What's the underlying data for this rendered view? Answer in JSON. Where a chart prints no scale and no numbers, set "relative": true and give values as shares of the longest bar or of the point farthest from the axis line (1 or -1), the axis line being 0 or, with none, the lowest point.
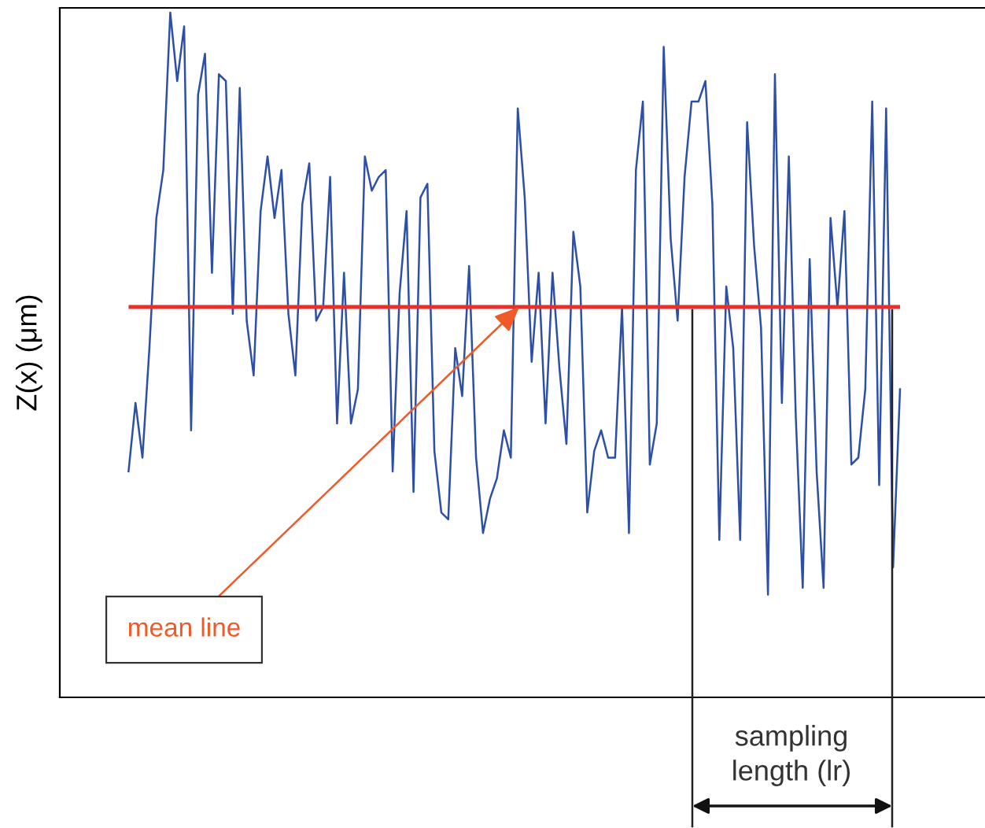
{
  "chart_data": {
    "type": "line",
    "relative": true,
    "ylabel": "Z(x) (μm)",
    "categories": [
      null,
      null,
      null,
      null,
      null,
      null,
      null,
      null,
      null,
      null,
      null,
      null,
      null,
      null,
      null,
      null,
      null,
      null,
      null,
      null,
      null,
      null,
      null,
      null,
      null,
      null,
      null,
      null,
      null,
      null,
      null,
      null,
      null,
      null,
      null,
      null,
      null,
      null,
      null,
      null,
      null,
      null,
      null,
      null,
      null,
      null,
      null,
      null,
      null,
      null,
      null,
      null,
      null,
      null,
      null,
      null,
      null,
      null,
      null,
      null,
      null,
      null,
      null,
      null,
      null,
      null,
      null,
      null,
      null,
      null,
      null,
      null,
      null,
      null,
      null,
      null,
      null,
      null,
      null,
      null,
      null,
      null,
      null,
      null,
      null,
      null,
      null,
      null,
      null,
      null,
      null,
      null,
      null,
      null,
      null,
      null,
      null,
      null,
      null,
      null,
      null,
      null,
      null,
      null,
      null,
      null,
      null,
      null,
      null,
      null,
      null,
      null
    ],
    "series": [
      {
        "color": "#2e4fa8",
        "values": [
          0.33,
          0.43,
          0.35,
          0.51,
          0.7,
          0.77,
          1.0,
          0.9,
          0.98,
          0.39,
          0.88,
          0.94,
          0.62,
          0.91,
          0.9,
          0.56,
          0.89,
          0.55,
          0.47,
          0.71,
          0.79,
          0.7,
          0.77,
          0.56,
          0.47,
          0.72,
          0.78,
          0.55,
          0.57,
          0.76,
          0.4,
          0.62,
          0.4,
          0.45,
          0.79,
          0.74,
          0.76,
          0.77,
          0.33,
          0.59,
          0.71,
          0.3,
          0.73,
          0.75,
          0.36,
          0.27,
          0.26,
          0.51,
          0.44,
          0.63,
          0.35,
          0.24,
          0.29,
          0.32,
          0.39,
          0.35,
          0.86,
          0.73,
          0.49,
          0.62,
          0.4,
          0.62,
          0.48,
          0.37,
          0.68,
          0.6,
          0.27,
          0.36,
          0.39,
          0.35,
          0.35,
          0.57,
          0.24,
          0.77,
          0.87,
          0.34,
          0.4,
          0.95,
          0.67,
          0.55,
          0.76,
          0.87,
          0.87,
          0.9,
          0.72,
          0.23,
          0.6,
          0.51,
          0.23,
          0.84,
          0.66,
          0.54,
          0.15,
          0.91,
          0.43,
          0.79,
          0.41,
          0.16,
          0.64,
          0.33,
          0.16,
          0.7,
          0.57,
          0.71,
          0.34,
          0.35,
          0.45,
          0.87,
          0.31,
          0.86,
          0.19,
          0.45
        ]
      }
    ],
    "ref_lines": [
      {
        "axis": "y",
        "value": 0.57,
        "label": "mean line",
        "color": "#e8302a"
      }
    ],
    "annotations": [
      "sampling\nlength (lr)"
    ],
    "grid": false,
    "legend": false,
    "marker": "none",
    "line_style": "solid"
  }
}
